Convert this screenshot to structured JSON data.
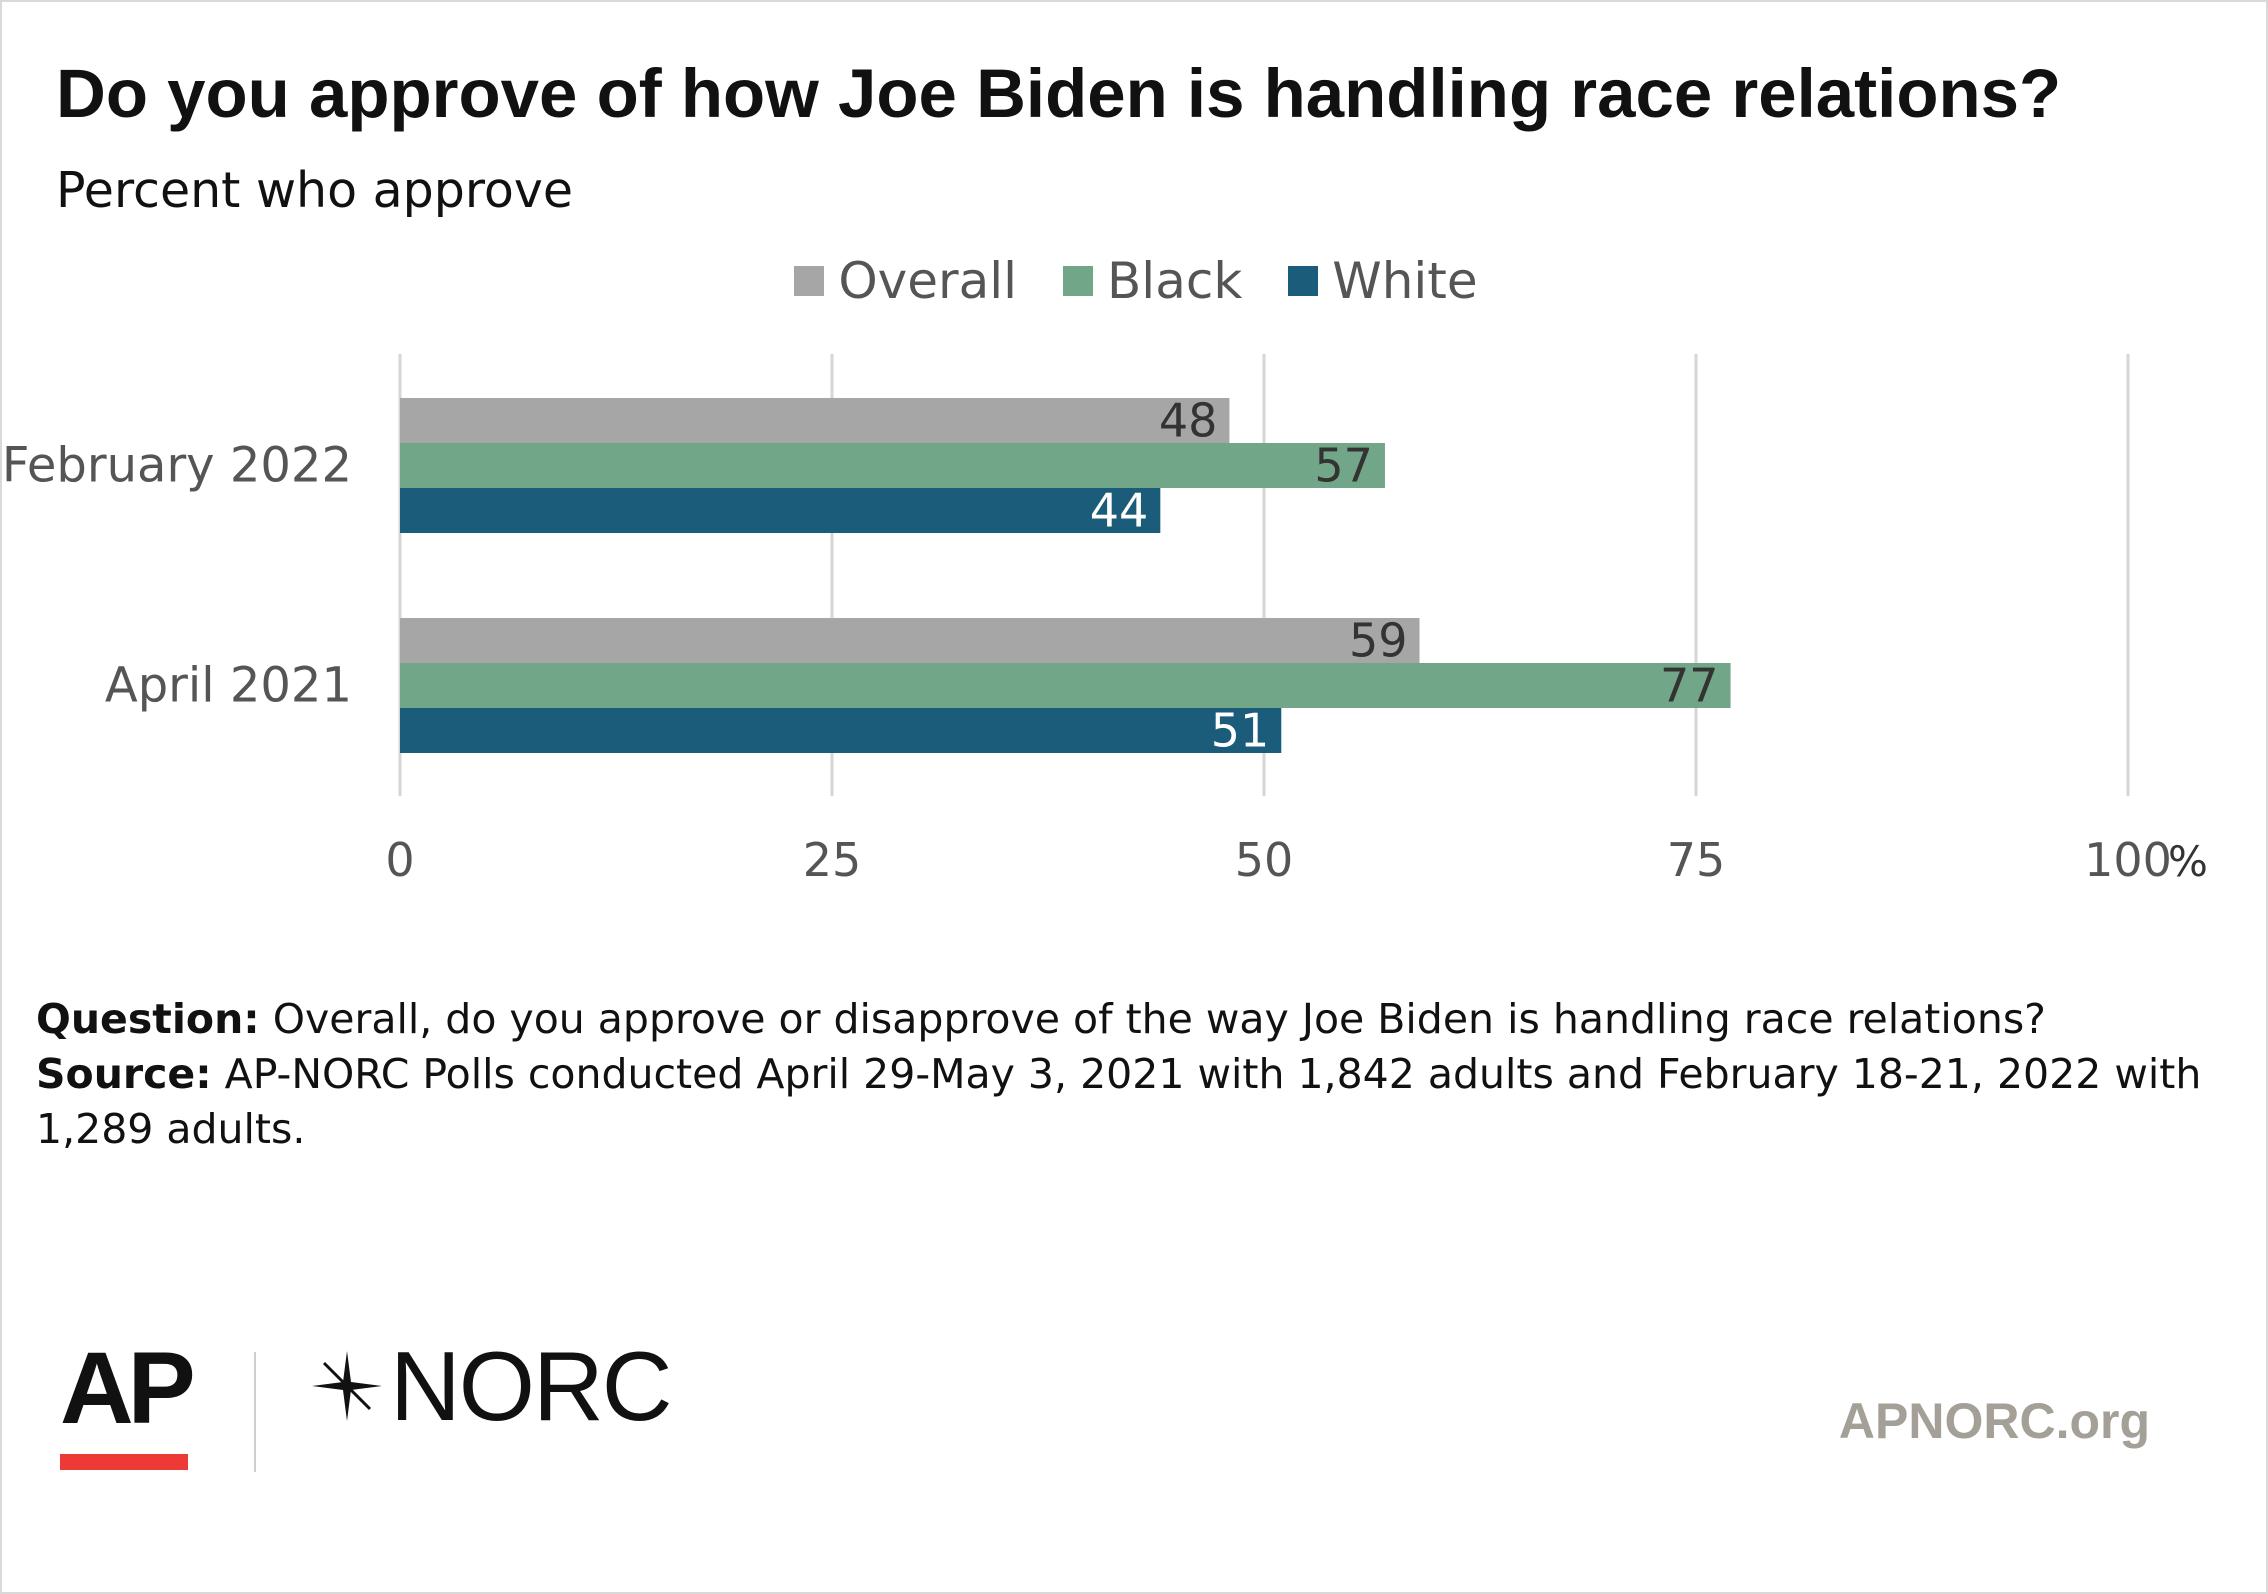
{
  "title": "Do you approve of how Joe Biden is handling race relations?",
  "subtitle": "Percent who approve",
  "legend": [
    {
      "name": "Overall",
      "color": "#a6a6a6"
    },
    {
      "name": "Black",
      "color": "#72a688"
    },
    {
      "name": "White",
      "color": "#1b5c7a"
    }
  ],
  "chart_data": {
    "type": "bar",
    "orientation": "horizontal",
    "categories": [
      "February 2022",
      "April 2021"
    ],
    "series": [
      {
        "name": "Overall",
        "values": [
          48,
          59
        ],
        "color": "#a6a6a6"
      },
      {
        "name": "Black",
        "values": [
          57,
          77
        ],
        "color": "#72a688"
      },
      {
        "name": "White",
        "values": [
          44,
          51
        ],
        "color": "#1b5c7a"
      }
    ],
    "xlim": [
      0,
      100
    ],
    "xticks": [
      "0",
      "25",
      "50",
      "75",
      "100"
    ],
    "x_unit": "%",
    "grid": true,
    "legend_position": "top-center"
  },
  "notes": {
    "question_label": "Question:",
    "question_text": " Overall, do you approve or disapprove of the way Joe Biden is handling race relations?",
    "source_label": "Source:",
    "source_text": "  AP-NORC Polls conducted April 29-May 3, 2021 with 1,842 adults and February 18-21, 2022 with 1,289 adults."
  },
  "footer": {
    "ap_logo": "AP",
    "norc_logo": "NORC",
    "site": "APNORC.org"
  }
}
